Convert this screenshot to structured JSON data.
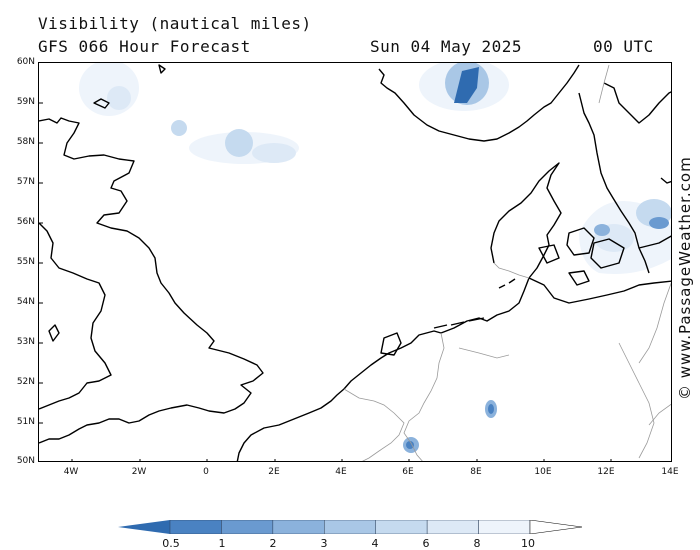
{
  "header": {
    "title": "Visibility (nautical miles)",
    "subtitle": "GFS 066 Hour Forecast",
    "date": "Sun 04 May 2025",
    "time": "00 UTC"
  },
  "axes": {
    "lat_labels": [
      "60N",
      "59N",
      "58N",
      "57N",
      "56N",
      "55N",
      "54N",
      "53N",
      "52N",
      "51N",
      "50N"
    ],
    "lon_labels": [
      "4W",
      "2W",
      "0",
      "2E",
      "4E",
      "6E",
      "8E",
      "10E",
      "12E",
      "14E"
    ]
  },
  "legend": {
    "labels": [
      "0.5",
      "1",
      "2",
      "3",
      "4",
      "6",
      "8",
      "10"
    ],
    "colors": [
      "#2f6bb0",
      "#4a82c2",
      "#6a9ad0",
      "#8bb2dc",
      "#a9c7e6",
      "#c5daef",
      "#dde9f6",
      "#eef4fb",
      "#ffffff"
    ]
  },
  "watermark": "© www.PassageWeather.com"
}
